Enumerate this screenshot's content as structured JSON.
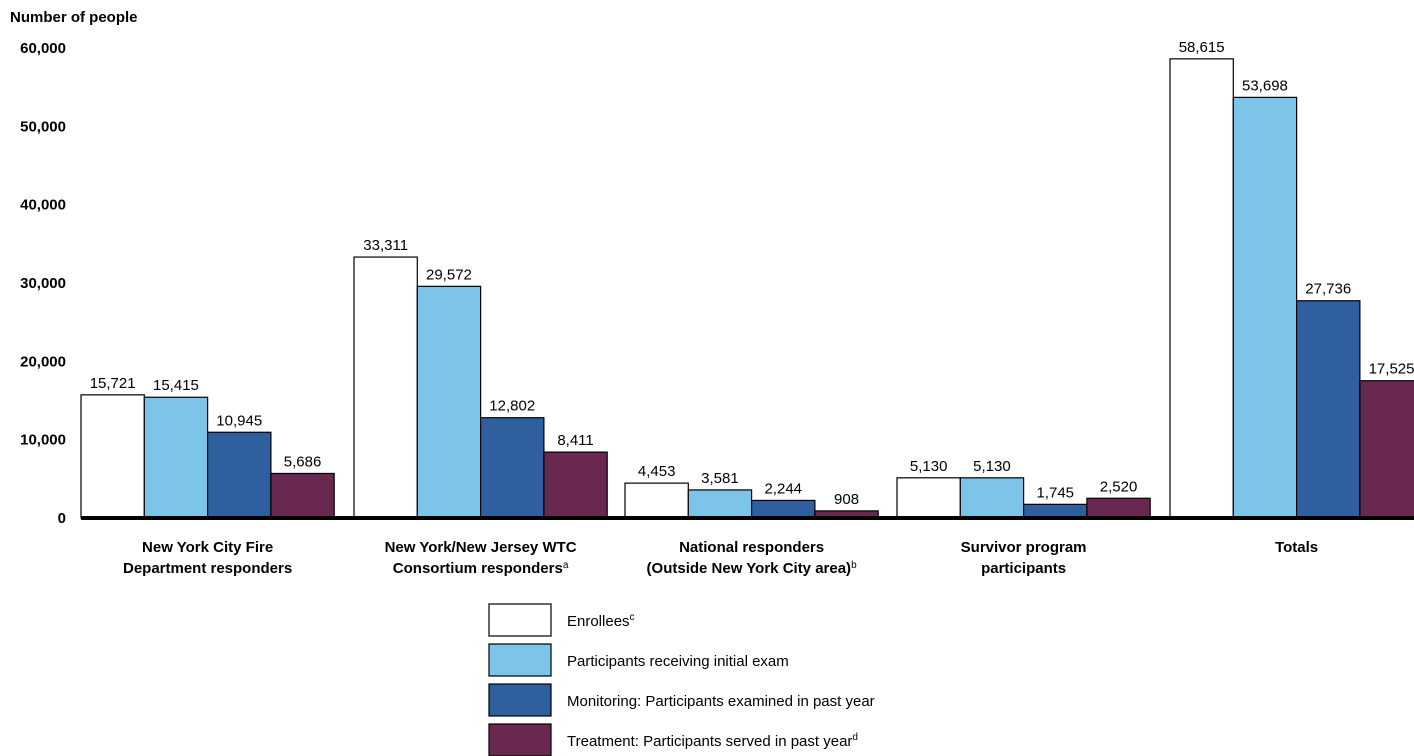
{
  "chart_data": {
    "type": "bar",
    "ylabel": "Number of people",
    "ylim": [
      0,
      60000
    ],
    "yticks": [
      {
        "value": 0,
        "label": "0"
      },
      {
        "value": 10000,
        "label": "10,000"
      },
      {
        "value": 20000,
        "label": "20,000"
      },
      {
        "value": 30000,
        "label": "30,000"
      },
      {
        "value": 40000,
        "label": "40,000"
      },
      {
        "value": 50000,
        "label": "50,000"
      },
      {
        "value": 60000,
        "label": "60,000"
      }
    ],
    "grid": false,
    "legend_position": "bottom-center",
    "categories": [
      {
        "lines": [
          {
            "text": "New York City Fire",
            "sup": ""
          },
          {
            "text": "Department responders",
            "sup": ""
          }
        ]
      },
      {
        "lines": [
          {
            "text": "New York/New Jersey WTC",
            "sup": ""
          },
          {
            "text": "Consortium responders",
            "sup": "a"
          }
        ]
      },
      {
        "lines": [
          {
            "text": "National responders",
            "sup": ""
          },
          {
            "text": "(Outside New York City area)",
            "sup": "b"
          }
        ]
      },
      {
        "lines": [
          {
            "text": "Survivor program",
            "sup": ""
          },
          {
            "text": "participants",
            "sup": ""
          }
        ]
      },
      {
        "lines": [
          {
            "text": "Totals",
            "sup": ""
          }
        ]
      }
    ],
    "series": [
      {
        "name": "Enrollees",
        "sup": "c",
        "color": "#ffffff",
        "values": [
          15721,
          33311,
          4453,
          5130,
          58615
        ],
        "labels": [
          "15,721",
          "33,311",
          "4,453",
          "5,130",
          "58,615"
        ]
      },
      {
        "name": "Participants receiving initial exam",
        "sup": "",
        "color": "#7cc4e8",
        "values": [
          15415,
          29572,
          3581,
          5130,
          53698
        ],
        "labels": [
          "15,415",
          "29,572",
          "3,581",
          "5,130",
          "53,698"
        ]
      },
      {
        "name": "Monitoring: Participants examined in past year",
        "sup": "",
        "color": "#2f5f9f",
        "values": [
          10945,
          12802,
          2244,
          1745,
          27736
        ],
        "labels": [
          "10,945",
          "12,802",
          "2,244",
          "1,745",
          "27,736"
        ]
      },
      {
        "name": "Treatment: Participants served in past year",
        "sup": "d",
        "color": "#69284f",
        "values": [
          5686,
          8411,
          908,
          2520,
          17525
        ],
        "labels": [
          "5,686",
          "8,411",
          "908",
          "2,520",
          "17,525"
        ]
      }
    ]
  }
}
